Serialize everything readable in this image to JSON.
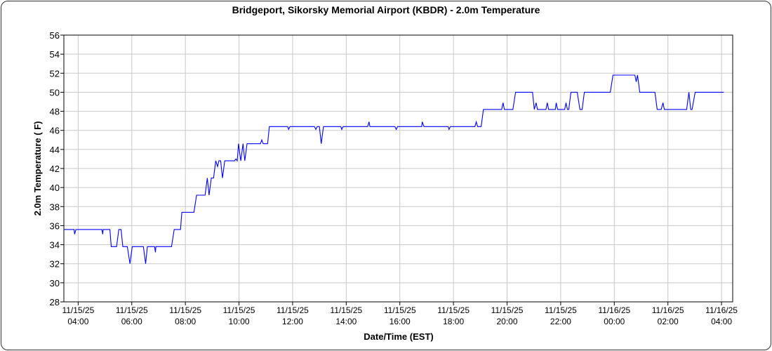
{
  "chart_data": {
    "type": "line",
    "title": "Bridgeport, Sikorsky Memorial Airport (KBDR) - 2.0m Temperature",
    "xlabel": "Date/Time (EST)",
    "ylabel": "2.0m Temperature ( F)",
    "ylim": [
      28,
      56
    ],
    "yticks": [
      28,
      30,
      32,
      34,
      36,
      38,
      40,
      42,
      44,
      46,
      48,
      50,
      52,
      54,
      56
    ],
    "xlim": [
      "2025-11-15T03:28",
      "2025-11-16T04:25"
    ],
    "xticks": [
      {
        "t": "2025-11-15T04:00",
        "date": "11/15/25",
        "time": "04:00"
      },
      {
        "t": "2025-11-15T06:00",
        "date": "11/15/25",
        "time": "06:00"
      },
      {
        "t": "2025-11-15T08:00",
        "date": "11/15/25",
        "time": "08:00"
      },
      {
        "t": "2025-11-15T10:00",
        "date": "11/15/25",
        "time": "10:00"
      },
      {
        "t": "2025-11-15T12:00",
        "date": "11/15/25",
        "time": "12:00"
      },
      {
        "t": "2025-11-15T14:00",
        "date": "11/15/25",
        "time": "14:00"
      },
      {
        "t": "2025-11-15T16:00",
        "date": "11/15/25",
        "time": "16:00"
      },
      {
        "t": "2025-11-15T18:00",
        "date": "11/15/25",
        "time": "18:00"
      },
      {
        "t": "2025-11-15T20:00",
        "date": "11/15/25",
        "time": "20:00"
      },
      {
        "t": "2025-11-15T22:00",
        "date": "11/15/25",
        "time": "22:00"
      },
      {
        "t": "2025-11-16T00:00",
        "date": "11/16/25",
        "time": "00:00"
      },
      {
        "t": "2025-11-16T02:00",
        "date": "11/16/25",
        "time": "02:00"
      },
      {
        "t": "2025-11-16T04:00",
        "date": "11/16/25",
        "time": "04:00"
      }
    ],
    "grid": true,
    "line_color": "#0000ff",
    "series": [
      {
        "points": [
          [
            "2025-11-15T03:29",
            35.6
          ],
          [
            "2025-11-15T03:51",
            35.6
          ],
          [
            "2025-11-15T03:52",
            35.1
          ],
          [
            "2025-11-15T03:55",
            35.6
          ],
          [
            "2025-11-15T04:53",
            35.6
          ],
          [
            "2025-11-15T04:55",
            35.1
          ],
          [
            "2025-11-15T04:56",
            35.6
          ],
          [
            "2025-11-15T05:11",
            35.6
          ],
          [
            "2025-11-15T05:14",
            33.8
          ],
          [
            "2025-11-15T05:26",
            33.8
          ],
          [
            "2025-11-15T05:31",
            35.6
          ],
          [
            "2025-11-15T05:36",
            35.6
          ],
          [
            "2025-11-15T05:40",
            33.8
          ],
          [
            "2025-11-15T05:50",
            33.8
          ],
          [
            "2025-11-15T05:56",
            32.0
          ],
          [
            "2025-11-15T06:01",
            33.8
          ],
          [
            "2025-11-15T06:26",
            33.8
          ],
          [
            "2025-11-15T06:31",
            32.0
          ],
          [
            "2025-11-15T06:35",
            33.8
          ],
          [
            "2025-11-15T06:51",
            33.8
          ],
          [
            "2025-11-15T06:53",
            33.2
          ],
          [
            "2025-11-15T06:54",
            33.8
          ],
          [
            "2025-11-15T07:29",
            33.8
          ],
          [
            "2025-11-15T07:35",
            35.6
          ],
          [
            "2025-11-15T07:49",
            35.6
          ],
          [
            "2025-11-15T07:52",
            37.4
          ],
          [
            "2025-11-15T08:19",
            37.4
          ],
          [
            "2025-11-15T08:25",
            39.2
          ],
          [
            "2025-11-15T08:44",
            39.2
          ],
          [
            "2025-11-15T08:49",
            41.0
          ],
          [
            "2025-11-15T08:53",
            39.2
          ],
          [
            "2025-11-15T08:58",
            41.0
          ],
          [
            "2025-11-15T09:03",
            41.0
          ],
          [
            "2025-11-15T09:08",
            42.8
          ],
          [
            "2025-11-15T09:12",
            42.2
          ],
          [
            "2025-11-15T09:15",
            42.8
          ],
          [
            "2025-11-15T09:19",
            42.8
          ],
          [
            "2025-11-15T09:23",
            41.0
          ],
          [
            "2025-11-15T09:28",
            42.8
          ],
          [
            "2025-11-15T09:50",
            42.8
          ],
          [
            "2025-11-15T09:53",
            43.0
          ],
          [
            "2025-11-15T09:56",
            42.8
          ],
          [
            "2025-11-15T09:59",
            44.6
          ],
          [
            "2025-11-15T10:04",
            42.8
          ],
          [
            "2025-11-15T10:09",
            44.6
          ],
          [
            "2025-11-15T10:13",
            42.8
          ],
          [
            "2025-11-15T10:18",
            44.6
          ],
          [
            "2025-11-15T10:48",
            44.6
          ],
          [
            "2025-11-15T10:51",
            45.0
          ],
          [
            "2025-11-15T10:54",
            44.6
          ],
          [
            "2025-11-15T11:04",
            44.6
          ],
          [
            "2025-11-15T11:08",
            46.4
          ],
          [
            "2025-11-15T11:49",
            46.4
          ],
          [
            "2025-11-15T11:51",
            46.1
          ],
          [
            "2025-11-15T11:54",
            46.4
          ],
          [
            "2025-11-15T12:49",
            46.4
          ],
          [
            "2025-11-15T12:52",
            46.1
          ],
          [
            "2025-11-15T12:55",
            46.4
          ],
          [
            "2025-11-15T13:00",
            46.4
          ],
          [
            "2025-11-15T13:04",
            44.6
          ],
          [
            "2025-11-15T13:09",
            46.4
          ],
          [
            "2025-11-15T13:48",
            46.4
          ],
          [
            "2025-11-15T13:50",
            46.1
          ],
          [
            "2025-11-15T13:53",
            46.4
          ],
          [
            "2025-11-15T14:48",
            46.4
          ],
          [
            "2025-11-15T14:51",
            46.9
          ],
          [
            "2025-11-15T14:53",
            46.4
          ],
          [
            "2025-11-15T15:49",
            46.4
          ],
          [
            "2025-11-15T15:52",
            46.1
          ],
          [
            "2025-11-15T15:55",
            46.4
          ],
          [
            "2025-11-15T16:49",
            46.4
          ],
          [
            "2025-11-15T16:50",
            46.9
          ],
          [
            "2025-11-15T16:54",
            46.4
          ],
          [
            "2025-11-15T17:48",
            46.4
          ],
          [
            "2025-11-15T17:50",
            46.1
          ],
          [
            "2025-11-15T17:53",
            46.4
          ],
          [
            "2025-11-15T18:48",
            46.4
          ],
          [
            "2025-11-15T18:51",
            46.9
          ],
          [
            "2025-11-15T18:54",
            46.4
          ],
          [
            "2025-11-15T19:02",
            46.4
          ],
          [
            "2025-11-15T19:07",
            48.2
          ],
          [
            "2025-11-15T19:48",
            48.2
          ],
          [
            "2025-11-15T19:51",
            48.9
          ],
          [
            "2025-11-15T19:54",
            48.2
          ],
          [
            "2025-11-15T20:13",
            48.2
          ],
          [
            "2025-11-15T20:19",
            50.0
          ],
          [
            "2025-11-15T20:57",
            50.0
          ],
          [
            "2025-11-15T21:01",
            48.2
          ],
          [
            "2025-11-15T21:05",
            48.9
          ],
          [
            "2025-11-15T21:08",
            48.2
          ],
          [
            "2025-11-15T21:27",
            48.2
          ],
          [
            "2025-11-15T21:30",
            48.9
          ],
          [
            "2025-11-15T21:33",
            48.2
          ],
          [
            "2025-11-15T21:48",
            48.2
          ],
          [
            "2025-11-15T21:50",
            48.9
          ],
          [
            "2025-11-15T21:53",
            48.2
          ],
          [
            "2025-11-15T22:09",
            48.2
          ],
          [
            "2025-11-15T22:12",
            48.9
          ],
          [
            "2025-11-15T22:15",
            48.2
          ],
          [
            "2025-11-15T22:18",
            48.2
          ],
          [
            "2025-11-15T22:23",
            50.0
          ],
          [
            "2025-11-15T22:37",
            50.0
          ],
          [
            "2025-11-15T22:43",
            48.2
          ],
          [
            "2025-11-15T22:48",
            48.2
          ],
          [
            "2025-11-15T22:53",
            50.0
          ],
          [
            "2025-11-15T23:51",
            50.0
          ],
          [
            "2025-11-15T23:57",
            51.8
          ],
          [
            "2025-11-16T00:46",
            51.8
          ],
          [
            "2025-11-16T00:49",
            51.1
          ],
          [
            "2025-11-16T00:52",
            51.8
          ],
          [
            "2025-11-16T00:57",
            50.0
          ],
          [
            "2025-11-16T01:31",
            50.0
          ],
          [
            "2025-11-16T01:36",
            48.2
          ],
          [
            "2025-11-16T01:45",
            48.2
          ],
          [
            "2025-11-16T01:49",
            48.9
          ],
          [
            "2025-11-16T01:52",
            48.2
          ],
          [
            "2025-11-16T02:42",
            48.2
          ],
          [
            "2025-11-16T02:47",
            50.0
          ],
          [
            "2025-11-16T02:51",
            48.2
          ],
          [
            "2025-11-16T02:54",
            48.2
          ],
          [
            "2025-11-16T03:01",
            50.0
          ],
          [
            "2025-11-16T04:05",
            50.0
          ]
        ]
      }
    ]
  }
}
